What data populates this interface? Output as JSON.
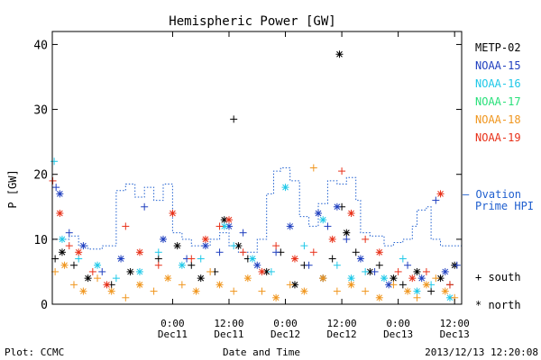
{
  "chart_data": {
    "type": "scatter",
    "title": "Hemispheric Power [GW]",
    "ylabel": "P [GW]",
    "xlabel": "Date and Time",
    "ylim": [
      0,
      42
    ],
    "yticks": [
      0,
      10,
      20,
      30,
      40
    ],
    "x_unit": "hours since 2013-12-10 00:00",
    "xlim": [
      -1.6,
      85.5
    ],
    "xticks": [
      {
        "x": 24,
        "top": "0:00",
        "bottom": "Dec11"
      },
      {
        "x": 36,
        "top": "12:00",
        "bottom": "Dec11"
      },
      {
        "x": 48,
        "top": "0:00",
        "bottom": "Dec12"
      },
      {
        "x": 60,
        "top": "12:00",
        "bottom": "Dec12"
      },
      {
        "x": 72,
        "top": "0:00",
        "bottom": "Dec13"
      },
      {
        "x": 84,
        "top": "12:00",
        "bottom": "Dec13"
      }
    ],
    "footer_left": "Plot: CCMC",
    "footer_right": "2013/12/13 12:20:08",
    "series": [
      {
        "name": "METP-02",
        "color": "#000000",
        "values": [
          [
            -1,
            7
          ],
          [
            0.5,
            8
          ],
          [
            3,
            6
          ],
          [
            6,
            4
          ],
          [
            11,
            3
          ],
          [
            15,
            5
          ],
          [
            21,
            7
          ],
          [
            25,
            9
          ],
          [
            28,
            6
          ],
          [
            30,
            4
          ],
          [
            33,
            5
          ],
          [
            35,
            13
          ],
          [
            37,
            28.5
          ],
          [
            38,
            9
          ],
          [
            40,
            7
          ],
          [
            44,
            5
          ],
          [
            47,
            8
          ],
          [
            50,
            3
          ],
          [
            52,
            6
          ],
          [
            56,
            4
          ],
          [
            58,
            7
          ],
          [
            59.5,
            38.5
          ],
          [
            60,
            15
          ],
          [
            61,
            11
          ],
          [
            63,
            8
          ],
          [
            66,
            5
          ],
          [
            68,
            6
          ],
          [
            71,
            4
          ],
          [
            73,
            3
          ],
          [
            76,
            5
          ],
          [
            79,
            2
          ],
          [
            81,
            4
          ],
          [
            83,
            3
          ],
          [
            84,
            6
          ]
        ]
      },
      {
        "name": "NOAA-15",
        "color": "#1f3fbf",
        "values": [
          [
            -0.8,
            18
          ],
          [
            0,
            17
          ],
          [
            2,
            11
          ],
          [
            5,
            9
          ],
          [
            9,
            5
          ],
          [
            13,
            7
          ],
          [
            18,
            15
          ],
          [
            22,
            10
          ],
          [
            27,
            7
          ],
          [
            31,
            9
          ],
          [
            34,
            8
          ],
          [
            36,
            12
          ],
          [
            39,
            11
          ],
          [
            42,
            6
          ],
          [
            46,
            8
          ],
          [
            49,
            12
          ],
          [
            53,
            6
          ],
          [
            55,
            14
          ],
          [
            57,
            12
          ],
          [
            59,
            15
          ],
          [
            61,
            10
          ],
          [
            64,
            7
          ],
          [
            67,
            5
          ],
          [
            70,
            3
          ],
          [
            74,
            6
          ],
          [
            77,
            4
          ],
          [
            80,
            16
          ],
          [
            82,
            5
          ],
          [
            84.5,
            6
          ]
        ]
      },
      {
        "name": "NOAA-16",
        "color": "#1ec8e8",
        "values": [
          [
            -1.2,
            22
          ],
          [
            0.5,
            10
          ],
          [
            4,
            7
          ],
          [
            8,
            6
          ],
          [
            12,
            4
          ],
          [
            17,
            5
          ],
          [
            21,
            8
          ],
          [
            26,
            6
          ],
          [
            30,
            7
          ],
          [
            35,
            12
          ],
          [
            37,
            9
          ],
          [
            41,
            7
          ],
          [
            45,
            5
          ],
          [
            48,
            18
          ],
          [
            52,
            9
          ],
          [
            56,
            13
          ],
          [
            59,
            6
          ],
          [
            62,
            4
          ],
          [
            65,
            5
          ],
          [
            69,
            4
          ],
          [
            73,
            7
          ],
          [
            76,
            2
          ],
          [
            79,
            3
          ],
          [
            83,
            1
          ]
        ]
      },
      {
        "name": "NOAA-17",
        "color": "#28e07a",
        "values": []
      },
      {
        "name": "NOAA-18",
        "color": "#f0961e",
        "values": [
          [
            -1,
            5
          ],
          [
            1,
            6
          ],
          [
            3,
            3
          ],
          [
            5,
            2
          ],
          [
            8,
            4
          ],
          [
            11,
            2
          ],
          [
            14,
            1
          ],
          [
            17,
            3
          ],
          [
            20,
            2
          ],
          [
            23,
            4
          ],
          [
            26,
            3
          ],
          [
            29,
            2
          ],
          [
            32,
            5
          ],
          [
            34,
            3
          ],
          [
            37,
            2
          ],
          [
            40,
            4
          ],
          [
            43,
            2
          ],
          [
            46,
            1
          ],
          [
            49,
            3
          ],
          [
            52,
            2
          ],
          [
            54,
            21
          ],
          [
            56,
            4
          ],
          [
            59,
            2
          ],
          [
            62,
            3
          ],
          [
            65,
            2
          ],
          [
            68,
            1
          ],
          [
            71,
            3
          ],
          [
            74,
            2
          ],
          [
            76,
            1
          ],
          [
            78,
            3
          ],
          [
            80,
            4
          ],
          [
            82,
            2
          ],
          [
            84,
            1
          ]
        ]
      },
      {
        "name": "NOAA-19",
        "color": "#e83018",
        "values": [
          [
            -1.5,
            19
          ],
          [
            0,
            14
          ],
          [
            2,
            9
          ],
          [
            4,
            8
          ],
          [
            7,
            5
          ],
          [
            10,
            3
          ],
          [
            14,
            12
          ],
          [
            17,
            8
          ],
          [
            21,
            6
          ],
          [
            24,
            14
          ],
          [
            28,
            7
          ],
          [
            31,
            10
          ],
          [
            34,
            12
          ],
          [
            36,
            13
          ],
          [
            39,
            8
          ],
          [
            43,
            5
          ],
          [
            46,
            9
          ],
          [
            50,
            7
          ],
          [
            54,
            8
          ],
          [
            58,
            10
          ],
          [
            60,
            20.5
          ],
          [
            62,
            14
          ],
          [
            65,
            10
          ],
          [
            68,
            8
          ],
          [
            72,
            5
          ],
          [
            75,
            4
          ],
          [
            78,
            5
          ],
          [
            81,
            17
          ],
          [
            83,
            3
          ]
        ]
      }
    ],
    "ovation": {
      "name": "Ovation Prime HPI",
      "label_line1": "— Ovation",
      "label_line2": "Prime HPI",
      "color": "#1f5fcf",
      "steps": [
        [
          -1.6,
          10
        ],
        [
          2,
          10
        ],
        [
          2,
          10.5
        ],
        [
          4,
          10.5
        ],
        [
          4,
          9
        ],
        [
          6,
          9
        ],
        [
          6,
          8.5
        ],
        [
          9,
          8.5
        ],
        [
          9,
          9
        ],
        [
          12,
          9
        ],
        [
          12,
          17.5
        ],
        [
          14,
          17.5
        ],
        [
          14,
          18.5
        ],
        [
          16,
          18.5
        ],
        [
          16,
          16.5
        ],
        [
          18,
          16.5
        ],
        [
          18,
          18
        ],
        [
          20,
          18
        ],
        [
          20,
          16
        ],
        [
          22,
          16
        ],
        [
          22,
          18.5
        ],
        [
          24,
          18.5
        ],
        [
          24,
          11
        ],
        [
          26,
          11
        ],
        [
          26,
          10
        ],
        [
          28,
          10
        ],
        [
          28,
          9
        ],
        [
          32,
          9
        ],
        [
          32,
          10
        ],
        [
          34,
          10
        ],
        [
          34,
          11
        ],
        [
          36,
          11
        ],
        [
          36,
          9
        ],
        [
          38,
          9
        ],
        [
          38,
          8
        ],
        [
          42,
          8
        ],
        [
          42,
          10
        ],
        [
          44,
          10
        ],
        [
          44,
          17
        ],
        [
          45.5,
          17
        ],
        [
          45.5,
          20.5
        ],
        [
          47,
          20.5
        ],
        [
          47,
          21
        ],
        [
          49,
          21
        ],
        [
          49,
          19
        ],
        [
          51,
          19
        ],
        [
          51,
          13.5
        ],
        [
          53,
          13.5
        ],
        [
          53,
          12
        ],
        [
          55,
          12
        ],
        [
          55,
          15.5
        ],
        [
          57,
          15.5
        ],
        [
          57,
          19
        ],
        [
          59,
          19
        ],
        [
          59,
          18.5
        ],
        [
          61,
          18.5
        ],
        [
          61,
          19.5
        ],
        [
          63,
          19.5
        ],
        [
          63,
          16
        ],
        [
          64,
          16
        ],
        [
          64,
          11
        ],
        [
          66,
          11
        ],
        [
          66,
          10.5
        ],
        [
          69,
          10.5
        ],
        [
          69,
          9
        ],
        [
          71,
          9
        ],
        [
          71,
          9.5
        ],
        [
          73,
          9.5
        ],
        [
          73,
          10
        ],
        [
          75,
          10
        ],
        [
          75,
          12
        ],
        [
          76,
          12
        ],
        [
          76,
          14.5
        ],
        [
          78,
          14.5
        ],
        [
          78,
          15
        ],
        [
          79,
          15
        ],
        [
          79,
          10
        ],
        [
          81,
          10
        ],
        [
          81,
          9
        ],
        [
          83,
          9
        ],
        [
          83,
          9
        ],
        [
          85.5,
          9
        ]
      ]
    },
    "markers": {
      "plus": "+ south",
      "star": "* north"
    }
  }
}
